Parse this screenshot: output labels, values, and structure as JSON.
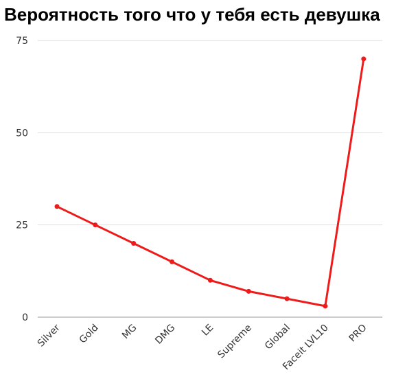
{
  "chart_data": {
    "type": "line",
    "title": "Вероятность того что у тебя есть девушка",
    "categories": [
      "Silver",
      "Gold",
      "MG",
      "DMG",
      "LE",
      "Supreme",
      "Global",
      "Faceit LVL10",
      "PRO"
    ],
    "series": [
      {
        "values": [
          30,
          25,
          20,
          15,
          10,
          7,
          5,
          3,
          70
        ]
      }
    ],
    "ylim": [
      0,
      75
    ],
    "yticks": [
      0,
      25,
      50,
      75
    ],
    "grid": true,
    "legend": "none",
    "colors": {
      "line": "#ee1b1b",
      "grid": "#dddddd",
      "axis": "#999999",
      "tick_text": "#333333"
    }
  }
}
